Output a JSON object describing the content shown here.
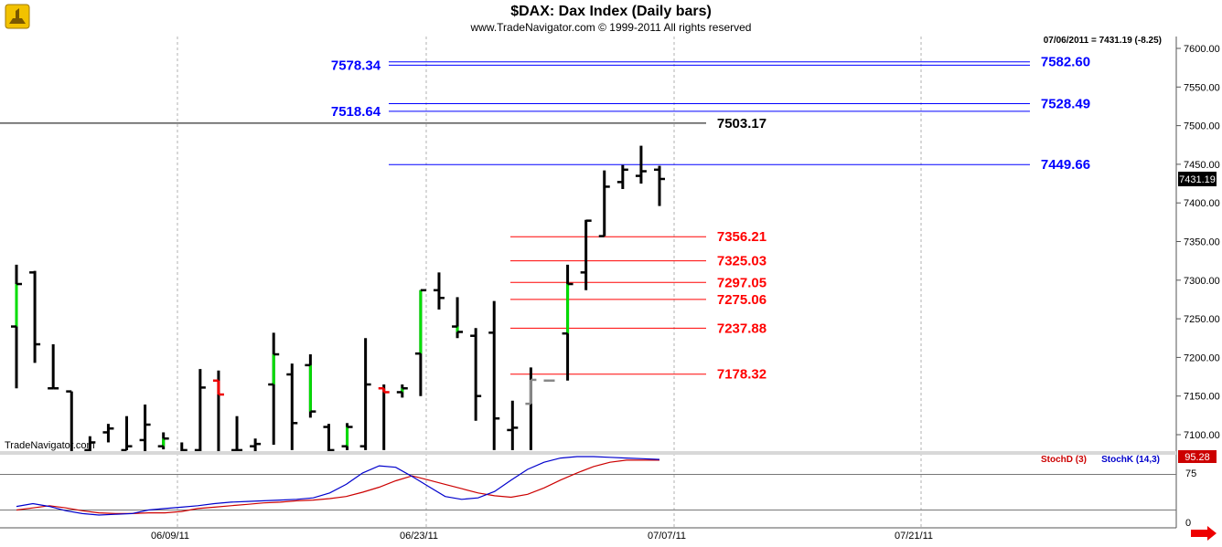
{
  "header": {
    "title": "$DAX:  Dax Index  (Daily bars)",
    "subtitle": "www.TradeNavigator.com © 1999-2011 All rights reserved",
    "status": "07/06/2011 = 7431.19 (-8.25)",
    "watermark": "TradeNavigator.com"
  },
  "colors": {
    "up": "#00dd00",
    "down": "#ee0000",
    "neutral": "#000000",
    "gray": "#888888",
    "blue": "#0000ff",
    "red": "#ff0000",
    "stochD": "#cc0000",
    "stochK": "#0000cc"
  },
  "chart_data": {
    "type": "ohlc",
    "ylim": [
      7080,
      7620
    ],
    "y_ticks": [
      7100,
      7150,
      7200,
      7250,
      7300,
      7350,
      7400,
      7450,
      7500,
      7550,
      7600
    ],
    "y_tick_labels": [
      "7100.00",
      "7150.00",
      "7200.00",
      "7250.00",
      "7300.00",
      "7350.00",
      "7400.00",
      "7450.00",
      "7500.00",
      "7550.00",
      "7600.00"
    ],
    "x_labels": [
      "06/09/11",
      "06/23/11",
      "07/07/11",
      "07/21/11"
    ],
    "last_price_label": "7431.19",
    "bars": [
      {
        "o": 7240,
        "h": 7320,
        "l": 7160,
        "c": 7295,
        "color": "up"
      },
      {
        "o": 7310,
        "h": 7312,
        "l": 7193,
        "c": 7217,
        "color": "neutral"
      },
      {
        "o": 7160,
        "h": 7217,
        "l": 7160,
        "c": 7160,
        "color": "up"
      },
      {
        "o": 7156,
        "h": 7156,
        "l": 7060,
        "c": 7070,
        "color": "neutral"
      },
      {
        "o": 7080,
        "h": 7098,
        "l": 7070,
        "c": 7090,
        "color": "neutral"
      },
      {
        "o": 7103,
        "h": 7114,
        "l": 7090,
        "c": 7108,
        "color": "neutral"
      },
      {
        "o": 7080,
        "h": 7124,
        "l": 7080,
        "c": 7085,
        "color": "neutral"
      },
      {
        "o": 7093,
        "h": 7139,
        "l": 7070,
        "c": 7113,
        "color": "neutral"
      },
      {
        "o": 7085,
        "h": 7103,
        "l": 7081,
        "c": 7095,
        "color": "up"
      },
      {
        "o": 7070,
        "h": 7090,
        "l": 7060,
        "c": 7080,
        "color": "neutral"
      },
      {
        "o": 7080,
        "h": 7185,
        "l": 7068,
        "c": 7161,
        "color": "neutral"
      },
      {
        "o": 7170,
        "h": 7183,
        "l": 7070,
        "c": 7152,
        "color": "down"
      },
      {
        "o": 7080,
        "h": 7124,
        "l": 7070,
        "c": 7080,
        "color": "neutral"
      },
      {
        "o": 7085,
        "h": 7095,
        "l": 7075,
        "c": 7088,
        "color": "neutral"
      },
      {
        "o": 7165,
        "h": 7232,
        "l": 7087,
        "c": 7204,
        "color": "up"
      },
      {
        "o": 7178,
        "h": 7192,
        "l": 7080,
        "c": 7115,
        "color": "neutral"
      },
      {
        "o": 7190,
        "h": 7204,
        "l": 7122,
        "c": 7130,
        "color": "up"
      },
      {
        "o": 7110,
        "h": 7114,
        "l": 7070,
        "c": 7080,
        "color": "neutral"
      },
      {
        "o": 7085,
        "h": 7115,
        "l": 7080,
        "c": 7110,
        "color": "up"
      },
      {
        "o": 7085,
        "h": 7225,
        "l": 7080,
        "c": 7165,
        "color": "neutral"
      },
      {
        "o": 7160,
        "h": 7165,
        "l": 7080,
        "c": 7155,
        "color": "down"
      },
      {
        "o": 7155,
        "h": 7165,
        "l": 7148,
        "c": 7160,
        "color": "up"
      },
      {
        "o": 7205,
        "h": 7287,
        "l": 7150,
        "c": 7287,
        "color": "up"
      },
      {
        "o": 7287,
        "h": 7310,
        "l": 7262,
        "c": 7277,
        "color": "neutral"
      },
      {
        "o": 7240,
        "h": 7278,
        "l": 7225,
        "c": 7233,
        "color": "up"
      },
      {
        "o": 7228,
        "h": 7238,
        "l": 7118,
        "c": 7150,
        "color": "neutral"
      },
      {
        "o": 7232,
        "h": 7273,
        "l": 7080,
        "c": 7121,
        "color": "neutral"
      },
      {
        "o": 7106,
        "h": 7144,
        "l": 7080,
        "c": 7109,
        "color": "neutral"
      },
      {
        "o": 7140,
        "h": 7187,
        "l": 7080,
        "c": 7171,
        "color": "gray"
      },
      {
        "o": 7170,
        "h": 7170,
        "l": 7170,
        "c": 7170,
        "color": "gray"
      },
      {
        "o": 7231,
        "h": 7320,
        "l": 7170,
        "c": 7295,
        "color": "up"
      },
      {
        "o": 7310,
        "h": 7378,
        "l": 7287,
        "c": 7377,
        "color": "neutral"
      },
      {
        "o": 7357,
        "h": 7442,
        "l": 7357,
        "c": 7421,
        "color": "neutral"
      },
      {
        "o": 7427,
        "h": 7449,
        "l": 7418,
        "c": 7443,
        "color": "neutral"
      },
      {
        "o": 7435,
        "h": 7474,
        "l": 7425,
        "c": 7441,
        "color": "neutral"
      },
      {
        "o": 7443,
        "h": 7448,
        "l": 7396,
        "c": 7431,
        "color": "neutral"
      }
    ],
    "levels": [
      {
        "value": 7582.6,
        "label": "7582.60",
        "color": "blue",
        "left_label": "7578.34",
        "left_value": 7578.34
      },
      {
        "value": 7528.49,
        "label": "7528.49",
        "color": "blue",
        "left_label": "7518.64",
        "left_value": 7518.64
      },
      {
        "value": 7503.17,
        "label": "7503.17",
        "color": "black"
      },
      {
        "value": 7449.66,
        "label": "7449.66",
        "color": "blue"
      },
      {
        "value": 7356.21,
        "label": "7356.21",
        "color": "red"
      },
      {
        "value": 7325.03,
        "label": "7325.03",
        "color": "red"
      },
      {
        "value": 7297.05,
        "label": "7297.05",
        "color": "red"
      },
      {
        "value": 7275.06,
        "label": "7275.06",
        "color": "red"
      },
      {
        "value": 7237.88,
        "label": "7237.88",
        "color": "red"
      },
      {
        "value": 7178.32,
        "label": "7178.32",
        "color": "red"
      }
    ],
    "stochastic": {
      "ylim": [
        0,
        100
      ],
      "ref_lines": [
        75,
        25
      ],
      "tick_labels": [
        "75",
        "0"
      ],
      "last_value_label": "95.28",
      "legend": [
        "StochD (3)",
        "StochK (14,3)"
      ],
      "stochD": [
        25,
        28,
        31,
        28,
        24,
        21,
        20,
        20,
        21,
        21,
        23,
        27,
        29,
        31,
        33,
        35,
        36,
        38,
        39,
        41,
        44,
        50,
        57,
        66,
        73,
        67,
        61,
        55,
        49,
        45,
        43,
        47,
        56,
        67,
        77,
        86,
        92,
        95,
        95,
        95
      ],
      "stochK": [
        30,
        34,
        30,
        24,
        20,
        18,
        19,
        20,
        25,
        27,
        29,
        31,
        34,
        36,
        37,
        38,
        39,
        40,
        42,
        49,
        61,
        77,
        87,
        85,
        72,
        58,
        44,
        40,
        42,
        51,
        67,
        82,
        92,
        98,
        100,
        100,
        99,
        98,
        97,
        96
      ]
    }
  }
}
